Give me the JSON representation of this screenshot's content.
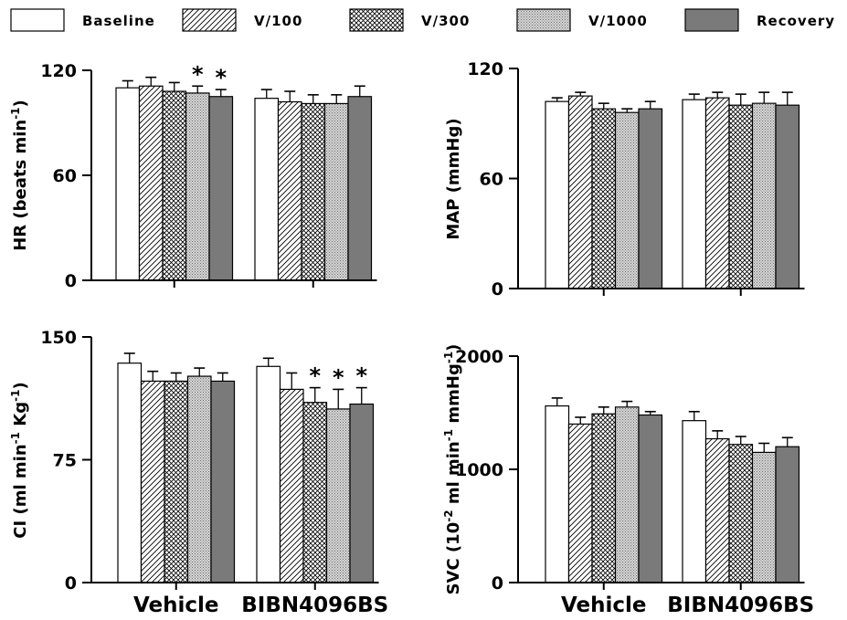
{
  "legend": {
    "items": [
      {
        "label": "Baseline",
        "pattern": "solid-white"
      },
      {
        "label": "V/100",
        "pattern": "diagonal-hatch"
      },
      {
        "label": "V/300",
        "pattern": "cross-hatch"
      },
      {
        "label": "V/1000",
        "pattern": "fine-stipple"
      },
      {
        "label": "Recovery",
        "pattern": "solid-gray"
      }
    ]
  },
  "colors": {
    "recovery_fill": "#7a7a7a",
    "stipple": "#9a9a9a",
    "axis": "#000000"
  },
  "chart_data": [
    {
      "type": "bar",
      "ylabel_main": "HR (beats min",
      "ylabel_sup": "-1",
      "ylabel_tail": ")",
      "ylim": [
        0,
        120
      ],
      "yticks": [
        0,
        60,
        120
      ],
      "ytick_labels": [
        "0",
        "60",
        "120"
      ],
      "categories": [
        "Vehicle",
        "BIBN4096BS"
      ],
      "series": [
        {
          "name": "Baseline",
          "values": [
            110,
            104
          ],
          "errors": [
            4,
            5
          ]
        },
        {
          "name": "V/100",
          "values": [
            111,
            102
          ],
          "errors": [
            5,
            6
          ]
        },
        {
          "name": "V/300",
          "values": [
            108,
            101
          ],
          "errors": [
            5,
            5
          ]
        },
        {
          "name": "V/1000",
          "values": [
            107,
            101
          ],
          "errors": [
            4,
            5
          ]
        },
        {
          "name": "Recovery",
          "values": [
            105,
            105
          ],
          "errors": [
            4,
            6
          ]
        }
      ],
      "significance": [
        {
          "category": 0,
          "series": 3,
          "label": "*"
        },
        {
          "category": 0,
          "series": 4,
          "label": "*"
        }
      ]
    },
    {
      "type": "bar",
      "ylabel_main": "MAP (mmHg)",
      "ylabel_sup": "",
      "ylabel_tail": "",
      "ylim": [
        0,
        120
      ],
      "yticks": [
        0,
        60,
        120
      ],
      "ytick_labels": [
        "0",
        "60",
        "120"
      ],
      "categories": [
        "Vehicle",
        "BIBN4096BS"
      ],
      "series": [
        {
          "name": "Baseline",
          "values": [
            102,
            103
          ],
          "errors": [
            2,
            3
          ]
        },
        {
          "name": "V/100",
          "values": [
            105,
            104
          ],
          "errors": [
            2,
            3
          ]
        },
        {
          "name": "V/300",
          "values": [
            98,
            100
          ],
          "errors": [
            3,
            6
          ]
        },
        {
          "name": "V/1000",
          "values": [
            96,
            101
          ],
          "errors": [
            2,
            6
          ]
        },
        {
          "name": "Recovery",
          "values": [
            98,
            100
          ],
          "errors": [
            4,
            7
          ]
        }
      ],
      "significance": []
    },
    {
      "type": "bar",
      "ylabel_main": "CI (ml min",
      "ylabel_sup": "-1",
      "ylabel_mid": " Kg",
      "ylabel_sup2": "-1",
      "ylabel_tail": ")",
      "ylim": [
        0,
        150
      ],
      "yticks": [
        0,
        75,
        150
      ],
      "ytick_labels": [
        "0",
        "75",
        "150"
      ],
      "categories": [
        "Vehicle",
        "BIBN4096BS"
      ],
      "series": [
        {
          "name": "Baseline",
          "values": [
            134,
            132
          ],
          "errors": [
            6,
            5
          ]
        },
        {
          "name": "V/100",
          "values": [
            123,
            118
          ],
          "errors": [
            6,
            10
          ]
        },
        {
          "name": "V/300",
          "values": [
            123,
            110
          ],
          "errors": [
            5,
            9
          ]
        },
        {
          "name": "V/1000",
          "values": [
            126,
            106
          ],
          "errors": [
            5,
            12
          ]
        },
        {
          "name": "Recovery",
          "values": [
            123,
            109
          ],
          "errors": [
            5,
            10
          ]
        }
      ],
      "significance": [
        {
          "category": 1,
          "series": 2,
          "label": "*"
        },
        {
          "category": 1,
          "series": 3,
          "label": "*"
        },
        {
          "category": 1,
          "series": 4,
          "label": "*"
        }
      ]
    },
    {
      "type": "bar",
      "ylabel_main": "SVC (10",
      "ylabel_sup": "-2",
      "ylabel_mid": " ml min",
      "ylabel_sup2": "-1",
      "ylabel_mid2": " mmHg",
      "ylabel_sup3": "-1",
      "ylabel_tail": ")",
      "ylim": [
        0,
        2000
      ],
      "yticks": [
        0,
        1000,
        2000
      ],
      "ytick_labels": [
        "0",
        "1000",
        "2000"
      ],
      "categories": [
        "Vehicle",
        "BIBN4096BS"
      ],
      "series": [
        {
          "name": "Baseline",
          "values": [
            1560,
            1430
          ],
          "errors": [
            70,
            80
          ]
        },
        {
          "name": "V/100",
          "values": [
            1400,
            1270
          ],
          "errors": [
            60,
            70
          ]
        },
        {
          "name": "V/300",
          "values": [
            1490,
            1220
          ],
          "errors": [
            60,
            70
          ]
        },
        {
          "name": "V/1000",
          "values": [
            1550,
            1150
          ],
          "errors": [
            50,
            80
          ]
        },
        {
          "name": "Recovery",
          "values": [
            1480,
            1200
          ],
          "errors": [
            30,
            80
          ]
        }
      ],
      "significance": []
    }
  ]
}
